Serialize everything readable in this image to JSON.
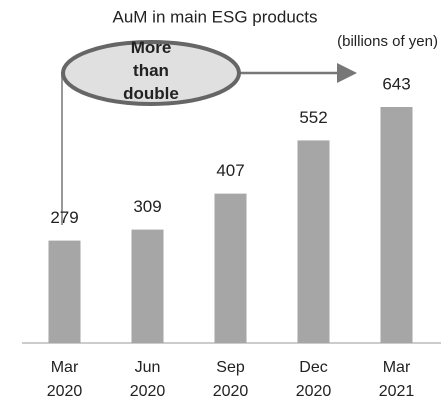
{
  "chart_data": {
    "type": "bar",
    "title": "AuM in main ESG products",
    "subtitle": "(billions of yen)",
    "annotation": "More than double",
    "categories": [
      "Mar 2020",
      "Jun 2020",
      "Sep 2020",
      "Dec 2020",
      "Mar 2021"
    ],
    "values": [
      279,
      309,
      407,
      552,
      643
    ],
    "color": "#a6a6a6"
  }
}
